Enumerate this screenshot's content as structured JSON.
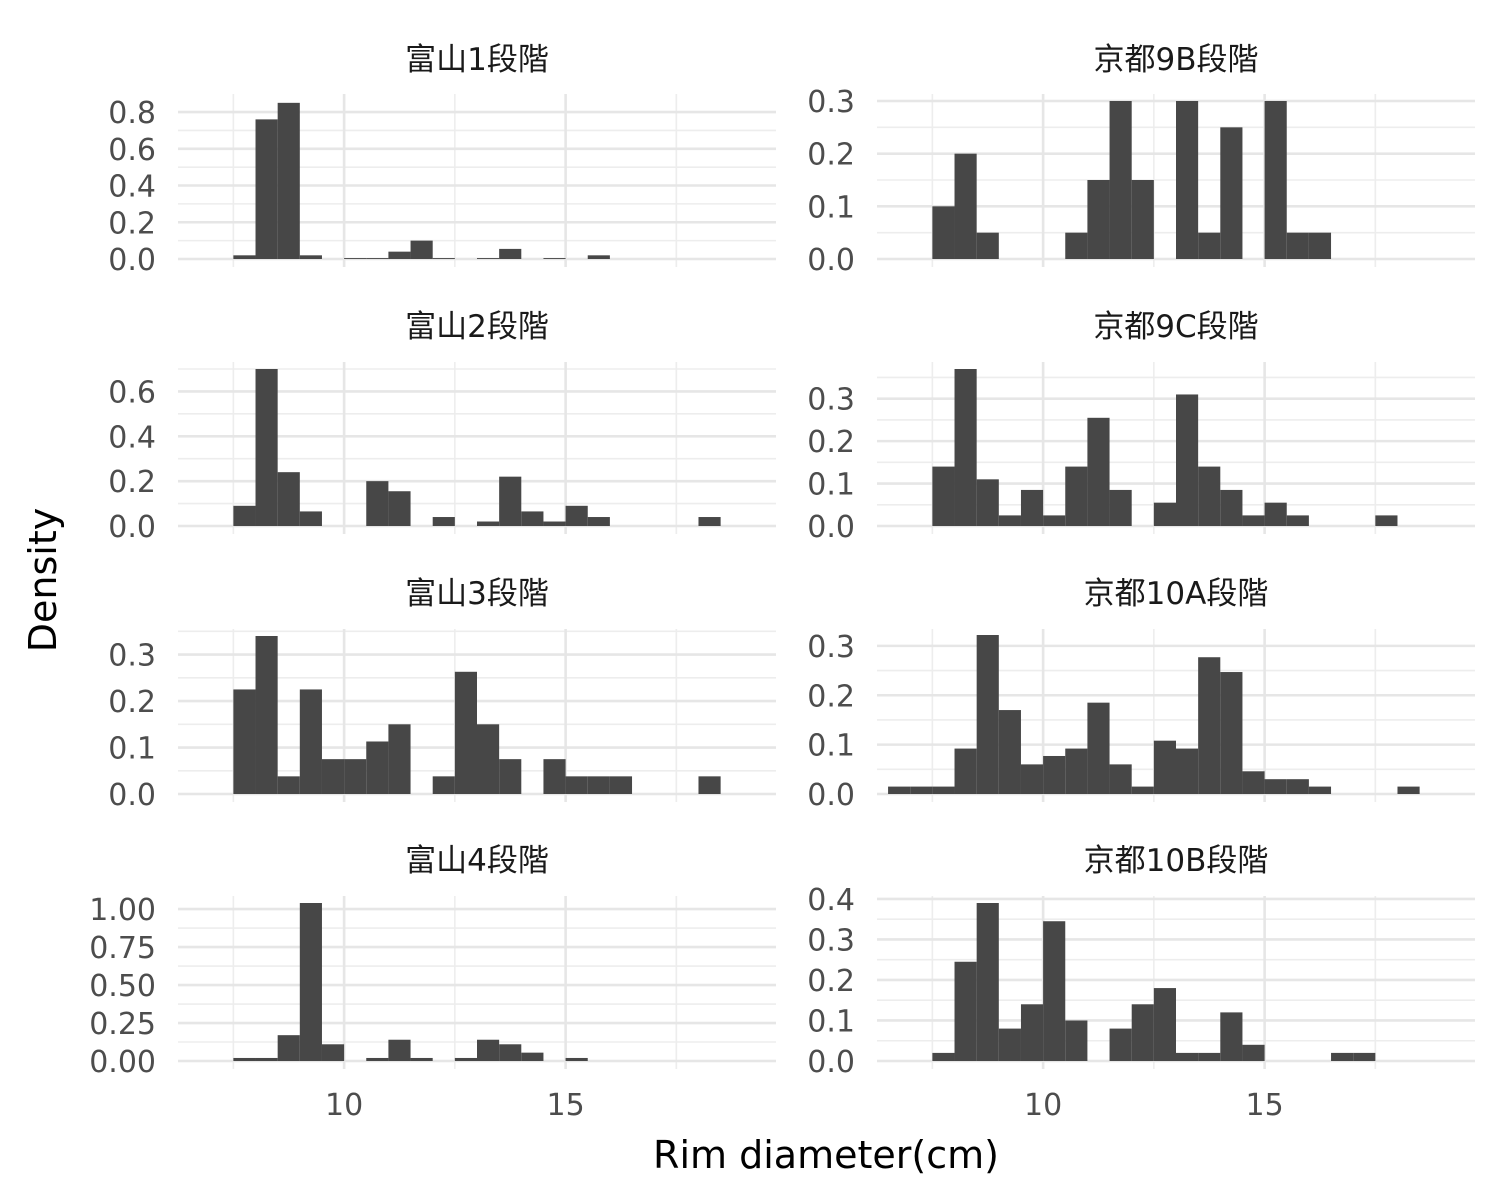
{
  "chart_data": {
    "type": "histogram-facets",
    "xlabel": "Rim diameter(cm)",
    "ylabel": "Density",
    "x_tick_labels": [
      "10",
      "15"
    ],
    "bin_width": 0.5,
    "xlim": [
      6.25,
      19.75
    ],
    "bar_color": "#474747",
    "grid": true,
    "panels": [
      {
        "title": "富山1段階",
        "ylim": [
          0,
          0.86
        ],
        "y_ticks": [
          "0.0",
          "0.2",
          "0.4",
          "0.6",
          "0.8"
        ],
        "bins": [
          [
            7.5,
            0.02
          ],
          [
            8.0,
            0.76
          ],
          [
            8.5,
            0.85
          ],
          [
            9.0,
            0.02
          ],
          [
            10.0,
            0.005
          ],
          [
            10.5,
            0.005
          ],
          [
            11.0,
            0.04
          ],
          [
            11.5,
            0.1
          ],
          [
            12.0,
            0.005
          ],
          [
            13.0,
            0.005
          ],
          [
            13.5,
            0.055
          ],
          [
            14.5,
            0.005
          ],
          [
            15.5,
            0.02
          ]
        ]
      },
      {
        "title": "京都9B段階",
        "ylim": [
          0,
          0.3
        ],
        "y_ticks": [
          "0.0",
          "0.1",
          "0.2",
          "0.3"
        ],
        "bins": [
          [
            7.5,
            0.1
          ],
          [
            8.0,
            0.2
          ],
          [
            8.5,
            0.05
          ],
          [
            10.5,
            0.05
          ],
          [
            11.0,
            0.15
          ],
          [
            11.5,
            0.3
          ],
          [
            12.0,
            0.15
          ],
          [
            13.0,
            0.3
          ],
          [
            13.5,
            0.05
          ],
          [
            14.0,
            0.25
          ],
          [
            15.0,
            0.3
          ],
          [
            15.5,
            0.05
          ],
          [
            16.0,
            0.05
          ]
        ]
      },
      {
        "title": "富山2段階",
        "ylim": [
          0,
          0.7
        ],
        "y_ticks": [
          "0.0",
          "0.2",
          "0.4",
          "0.6"
        ],
        "bins": [
          [
            7.5,
            0.09
          ],
          [
            8.0,
            0.7
          ],
          [
            8.5,
            0.24
          ],
          [
            9.0,
            0.065
          ],
          [
            10.5,
            0.2
          ],
          [
            11.0,
            0.155
          ],
          [
            12.0,
            0.04
          ],
          [
            13.0,
            0.02
          ],
          [
            13.5,
            0.22
          ],
          [
            14.0,
            0.065
          ],
          [
            14.5,
            0.02
          ],
          [
            15.0,
            0.09
          ],
          [
            15.5,
            0.04
          ],
          [
            18.0,
            0.04
          ]
        ]
      },
      {
        "title": "京都9C段階",
        "ylim": [
          0,
          0.37
        ],
        "y_ticks": [
          "0.0",
          "0.1",
          "0.2",
          "0.3"
        ],
        "bins": [
          [
            7.5,
            0.14
          ],
          [
            8.0,
            0.37
          ],
          [
            8.5,
            0.11
          ],
          [
            9.0,
            0.025
          ],
          [
            9.5,
            0.085
          ],
          [
            10.0,
            0.025
          ],
          [
            10.5,
            0.14
          ],
          [
            11.0,
            0.255
          ],
          [
            11.5,
            0.085
          ],
          [
            12.5,
            0.055
          ],
          [
            13.0,
            0.31
          ],
          [
            13.5,
            0.14
          ],
          [
            14.0,
            0.085
          ],
          [
            14.5,
            0.025
          ],
          [
            15.0,
            0.055
          ],
          [
            15.5,
            0.025
          ],
          [
            17.5,
            0.025
          ]
        ]
      },
      {
        "title": "富山3段階",
        "ylim": [
          0,
          0.34
        ],
        "y_ticks": [
          "0.0",
          "0.1",
          "0.2",
          "0.3"
        ],
        "bins": [
          [
            7.5,
            0.225
          ],
          [
            8.0,
            0.34
          ],
          [
            8.5,
            0.038
          ],
          [
            9.0,
            0.225
          ],
          [
            9.5,
            0.075
          ],
          [
            10.0,
            0.075
          ],
          [
            10.5,
            0.113
          ],
          [
            11.0,
            0.15
          ],
          [
            12.0,
            0.038
          ],
          [
            12.5,
            0.263
          ],
          [
            13.0,
            0.15
          ],
          [
            13.5,
            0.075
          ],
          [
            14.5,
            0.075
          ],
          [
            15.0,
            0.038
          ],
          [
            15.5,
            0.038
          ],
          [
            16.0,
            0.038
          ],
          [
            18.0,
            0.038
          ]
        ]
      },
      {
        "title": "京都10A段階",
        "ylim": [
          0,
          0.32
        ],
        "y_ticks": [
          "0.0",
          "0.1",
          "0.2",
          "0.3"
        ],
        "bins": [
          [
            6.5,
            0.015
          ],
          [
            7.0,
            0.015
          ],
          [
            7.5,
            0.015
          ],
          [
            8.0,
            0.092
          ],
          [
            8.5,
            0.322
          ],
          [
            9.0,
            0.17
          ],
          [
            9.5,
            0.06
          ],
          [
            10.0,
            0.077
          ],
          [
            10.5,
            0.092
          ],
          [
            11.0,
            0.185
          ],
          [
            11.5,
            0.06
          ],
          [
            12.0,
            0.015
          ],
          [
            12.5,
            0.108
          ],
          [
            13.0,
            0.092
          ],
          [
            13.5,
            0.277
          ],
          [
            14.0,
            0.247
          ],
          [
            14.5,
            0.046
          ],
          [
            15.0,
            0.03
          ],
          [
            15.5,
            0.03
          ],
          [
            16.0,
            0.015
          ],
          [
            18.0,
            0.015
          ]
        ]
      },
      {
        "title": "富山4段階",
        "ylim": [
          0,
          1.04
        ],
        "y_ticks": [
          "0.00",
          "0.25",
          "0.50",
          "0.75",
          "1.00"
        ],
        "bins": [
          [
            7.5,
            0.02
          ],
          [
            8.0,
            0.02
          ],
          [
            8.5,
            0.17
          ],
          [
            9.0,
            1.04
          ],
          [
            9.5,
            0.11
          ],
          [
            10.5,
            0.02
          ],
          [
            11.0,
            0.14
          ],
          [
            11.5,
            0.02
          ],
          [
            12.5,
            0.02
          ],
          [
            13.0,
            0.14
          ],
          [
            13.5,
            0.11
          ],
          [
            14.0,
            0.055
          ],
          [
            15.0,
            0.02
          ]
        ]
      },
      {
        "title": "京都10B段階",
        "ylim": [
          0,
          0.39
        ],
        "y_ticks": [
          "0.0",
          "0.1",
          "0.2",
          "0.3",
          "0.4"
        ],
        "bins": [
          [
            7.5,
            0.02
          ],
          [
            8.0,
            0.245
          ],
          [
            8.5,
            0.39
          ],
          [
            9.0,
            0.08
          ],
          [
            9.5,
            0.14
          ],
          [
            10.0,
            0.345
          ],
          [
            10.5,
            0.1
          ],
          [
            11.5,
            0.08
          ],
          [
            12.0,
            0.14
          ],
          [
            12.5,
            0.18
          ],
          [
            13.0,
            0.02
          ],
          [
            13.5,
            0.02
          ],
          [
            14.0,
            0.12
          ],
          [
            14.5,
            0.04
          ],
          [
            16.5,
            0.02
          ],
          [
            17.0,
            0.02
          ]
        ]
      }
    ]
  }
}
